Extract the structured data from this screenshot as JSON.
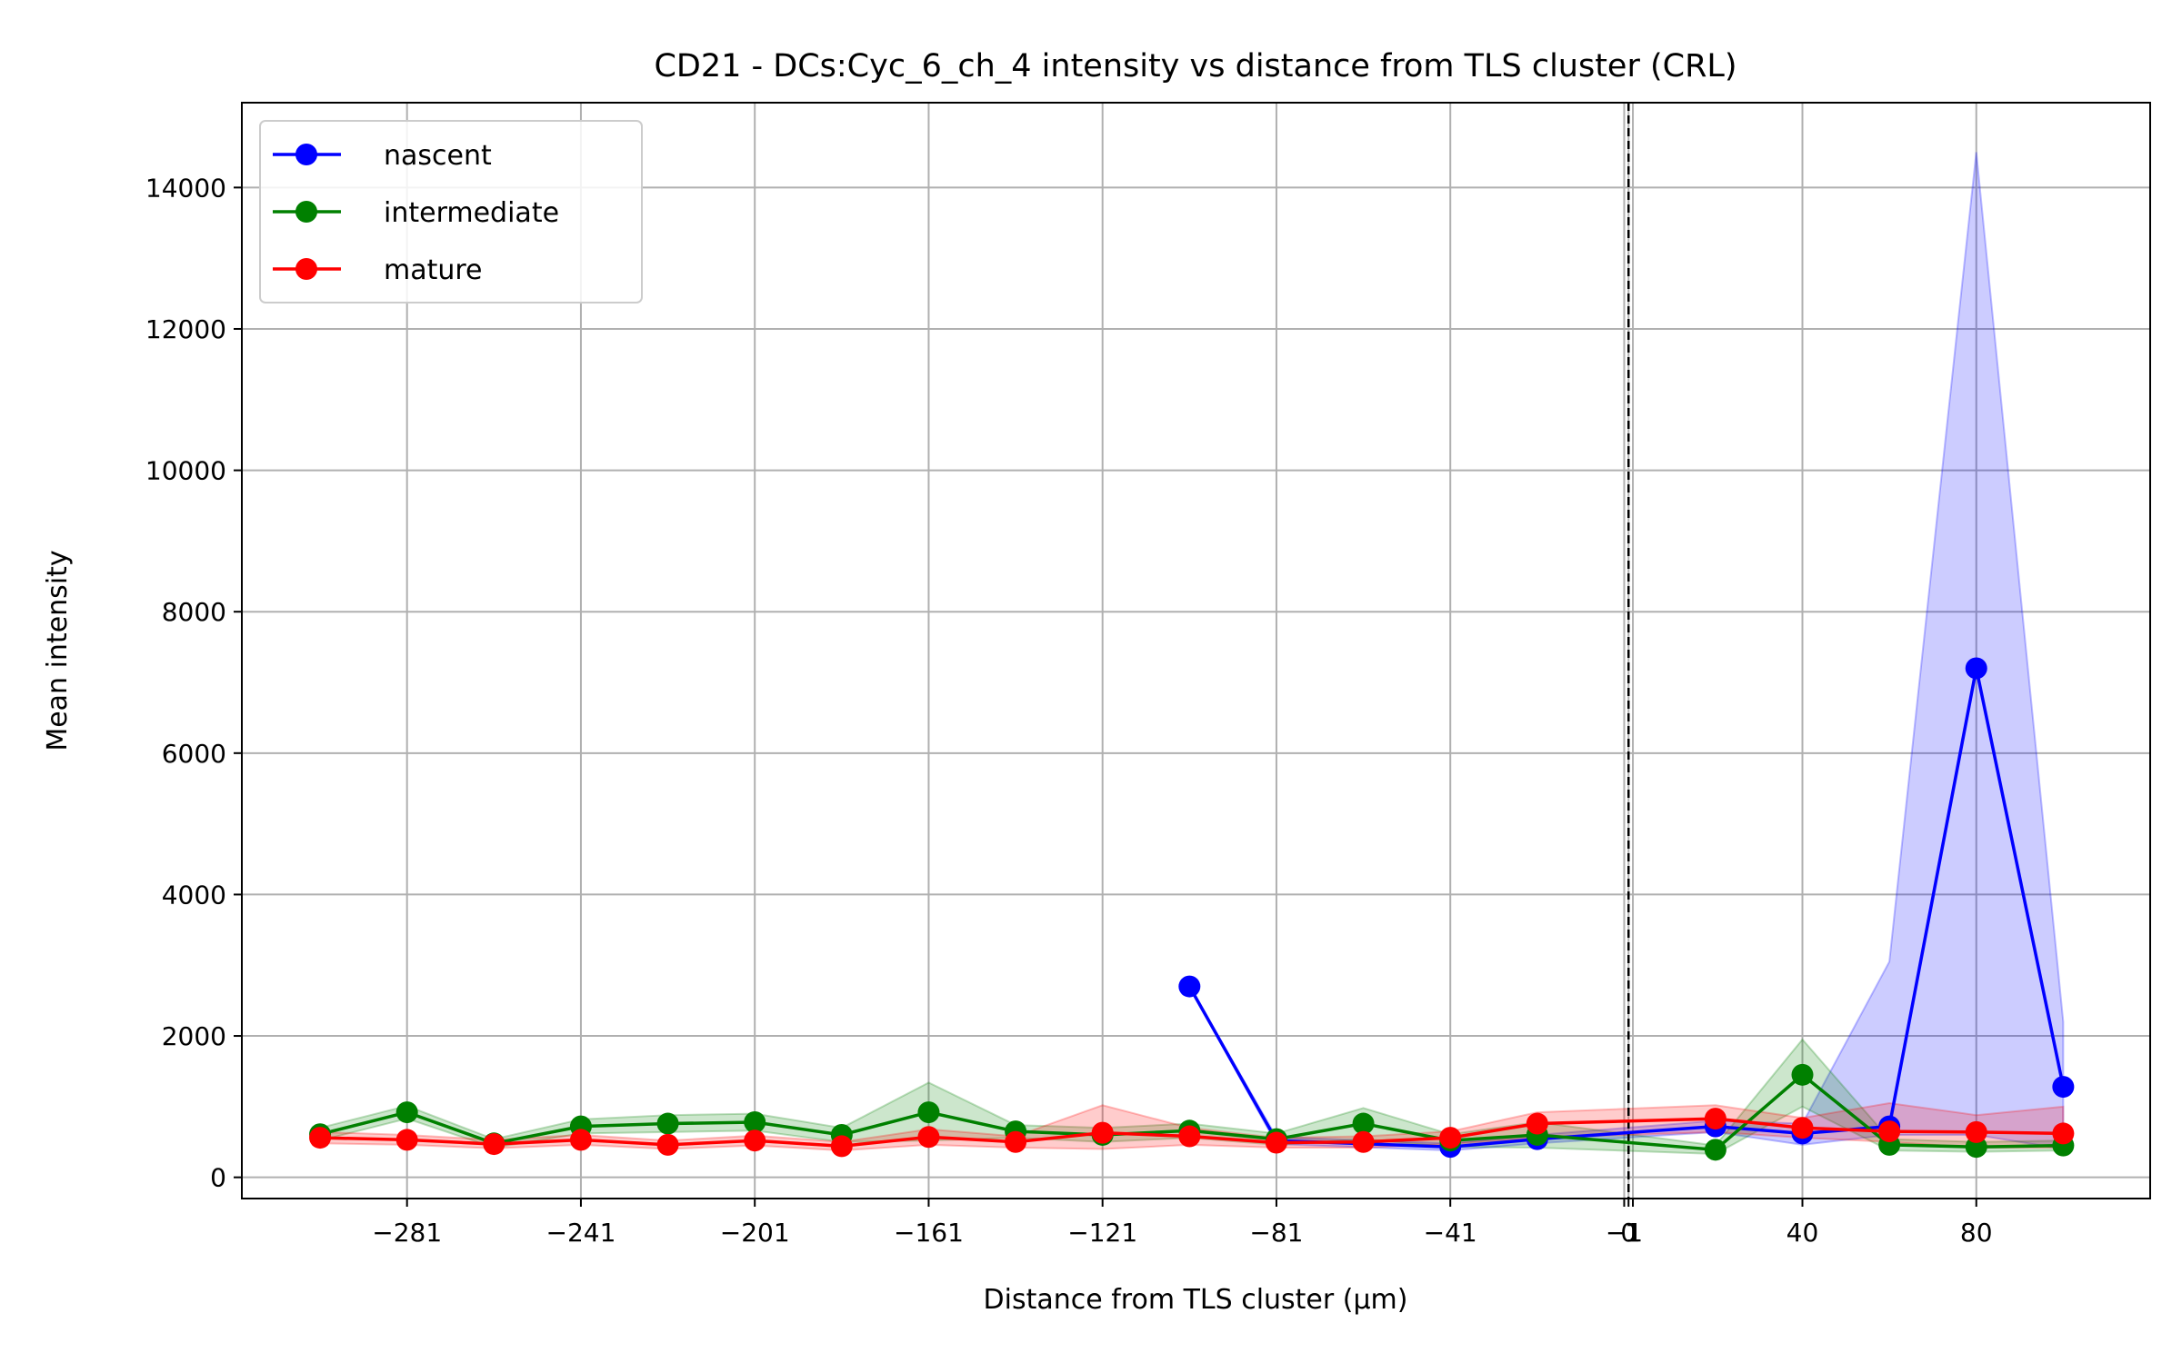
{
  "chart_data": {
    "type": "line",
    "title": "CD21 - DCs:Cyc_6_ch_4 intensity vs distance from TLS cluster (CRL)",
    "xlabel": "Distance from TLS cluster (μm)",
    "ylabel": "Mean intensity",
    "xlim": [
      -319,
      120
    ],
    "ylim": [
      -300,
      15200
    ],
    "x_ticks": [
      {
        "value": -281,
        "label": "−281"
      },
      {
        "value": -241,
        "label": "−241"
      },
      {
        "value": -201,
        "label": "−201"
      },
      {
        "value": -161,
        "label": "−161"
      },
      {
        "value": -121,
        "label": "−121"
      },
      {
        "value": -81,
        "label": "−81"
      },
      {
        "value": -41,
        "label": "−41"
      },
      {
        "value": -1,
        "label": "−1"
      },
      {
        "value": 0,
        "label": "0"
      },
      {
        "value": 1,
        "label": "1"
      },
      {
        "value": 40,
        "label": "40"
      },
      {
        "value": 80,
        "label": "80"
      }
    ],
    "y_ticks": [
      {
        "value": 0,
        "label": "0"
      },
      {
        "value": 2000,
        "label": "2000"
      },
      {
        "value": 4000,
        "label": "4000"
      },
      {
        "value": 6000,
        "label": "6000"
      },
      {
        "value": 8000,
        "label": "8000"
      },
      {
        "value": 10000,
        "label": "10000"
      },
      {
        "value": 12000,
        "label": "12000"
      },
      {
        "value": 14000,
        "label": "14000"
      }
    ],
    "grid": true,
    "vline_x": 0,
    "legend_position": "upper-left",
    "series": [
      {
        "name": "nascent",
        "color": "#0000ff",
        "band_color": "#0000ff",
        "band_opacity": 0.2,
        "points": [
          {
            "x": -101,
            "y": 2700,
            "lo": 2700,
            "hi": 2700
          },
          {
            "x": -81,
            "y": 520,
            "lo": 470,
            "hi": 570
          },
          {
            "x": -41,
            "y": 430,
            "lo": 380,
            "hi": 480
          },
          {
            "x": -21,
            "y": 540,
            "lo": 480,
            "hi": 600
          },
          {
            "x": 20,
            "y": 720,
            "lo": 640,
            "hi": 800
          },
          {
            "x": 40,
            "y": 620,
            "lo": 460,
            "hi": 760
          },
          {
            "x": 60,
            "y": 720,
            "lo": 600,
            "hi": 3050
          },
          {
            "x": 80,
            "y": 7200,
            "lo": 600,
            "hi": 14500
          },
          {
            "x": 100,
            "y": 1280,
            "lo": 400,
            "hi": 2200
          }
        ]
      },
      {
        "name": "intermediate",
        "color": "#008000",
        "band_color": "#008000",
        "band_opacity": 0.2,
        "points": [
          {
            "x": -301,
            "y": 610,
            "lo": 520,
            "hi": 700
          },
          {
            "x": -281,
            "y": 920,
            "lo": 830,
            "hi": 1010
          },
          {
            "x": -261,
            "y": 480,
            "lo": 420,
            "hi": 540
          },
          {
            "x": -241,
            "y": 720,
            "lo": 620,
            "hi": 820
          },
          {
            "x": -221,
            "y": 760,
            "lo": 640,
            "hi": 880
          },
          {
            "x": -201,
            "y": 780,
            "lo": 660,
            "hi": 900
          },
          {
            "x": -181,
            "y": 600,
            "lo": 500,
            "hi": 700
          },
          {
            "x": -161,
            "y": 920,
            "lo": 520,
            "hi": 1340
          },
          {
            "x": -141,
            "y": 650,
            "lo": 560,
            "hi": 740
          },
          {
            "x": -121,
            "y": 600,
            "lo": 500,
            "hi": 700
          },
          {
            "x": -101,
            "y": 660,
            "lo": 560,
            "hi": 760
          },
          {
            "x": -81,
            "y": 540,
            "lo": 460,
            "hi": 620
          },
          {
            "x": -61,
            "y": 760,
            "lo": 540,
            "hi": 980
          },
          {
            "x": -41,
            "y": 520,
            "lo": 430,
            "hi": 610
          },
          {
            "x": -21,
            "y": 600,
            "lo": 420,
            "hi": 780
          },
          {
            "x": 20,
            "y": 390,
            "lo": 330,
            "hi": 450
          },
          {
            "x": 40,
            "y": 1450,
            "lo": 1000,
            "hi": 1950
          },
          {
            "x": 60,
            "y": 460,
            "lo": 380,
            "hi": 540
          },
          {
            "x": 80,
            "y": 430,
            "lo": 360,
            "hi": 500
          },
          {
            "x": 100,
            "y": 450,
            "lo": 380,
            "hi": 520
          }
        ]
      },
      {
        "name": "mature",
        "color": "#ff0000",
        "band_color": "#ff0000",
        "band_opacity": 0.2,
        "points": [
          {
            "x": -301,
            "y": 560,
            "lo": 480,
            "hi": 640
          },
          {
            "x": -281,
            "y": 530,
            "lo": 460,
            "hi": 600
          },
          {
            "x": -261,
            "y": 470,
            "lo": 410,
            "hi": 530
          },
          {
            "x": -241,
            "y": 530,
            "lo": 460,
            "hi": 600
          },
          {
            "x": -221,
            "y": 460,
            "lo": 400,
            "hi": 520
          },
          {
            "x": -201,
            "y": 520,
            "lo": 450,
            "hi": 590
          },
          {
            "x": -181,
            "y": 440,
            "lo": 380,
            "hi": 500
          },
          {
            "x": -161,
            "y": 570,
            "lo": 460,
            "hi": 680
          },
          {
            "x": -141,
            "y": 500,
            "lo": 420,
            "hi": 580
          },
          {
            "x": -121,
            "y": 630,
            "lo": 400,
            "hi": 1020
          },
          {
            "x": -101,
            "y": 580,
            "lo": 460,
            "hi": 700
          },
          {
            "x": -81,
            "y": 490,
            "lo": 420,
            "hi": 560
          },
          {
            "x": -61,
            "y": 500,
            "lo": 420,
            "hi": 580
          },
          {
            "x": -41,
            "y": 560,
            "lo": 470,
            "hi": 650
          },
          {
            "x": -21,
            "y": 760,
            "lo": 560,
            "hi": 920
          },
          {
            "x": 20,
            "y": 830,
            "lo": 640,
            "hi": 1020
          },
          {
            "x": 40,
            "y": 700,
            "lo": 560,
            "hi": 840
          },
          {
            "x": 60,
            "y": 650,
            "lo": 500,
            "hi": 1050
          },
          {
            "x": 80,
            "y": 640,
            "lo": 420,
            "hi": 880
          },
          {
            "x": 100,
            "y": 620,
            "lo": 420,
            "hi": 1000
          }
        ]
      }
    ]
  }
}
